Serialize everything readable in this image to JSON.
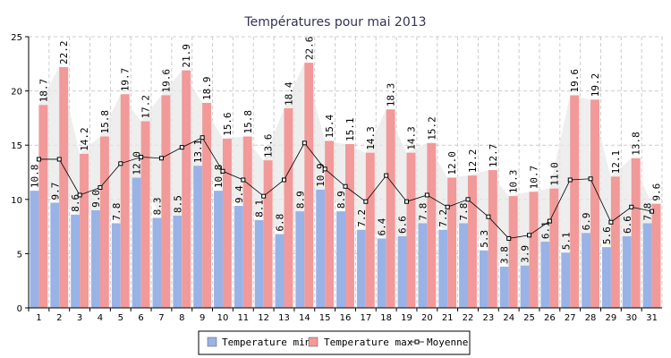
{
  "chart_data": {
    "type": "bar",
    "title": "Températures pour mai 2013",
    "categories": [
      "1",
      "2",
      "3",
      "4",
      "5",
      "6",
      "7",
      "8",
      "9",
      "10",
      "11",
      "12",
      "13",
      "14",
      "15",
      "16",
      "17",
      "18",
      "19",
      "20",
      "21",
      "22",
      "23",
      "24",
      "25",
      "26",
      "27",
      "28",
      "29",
      "30",
      "31"
    ],
    "series": [
      {
        "name": "Temperature min",
        "kind": "bar",
        "color": "#99b3e6",
        "values": [
          10.8,
          9.7,
          8.6,
          9.0,
          7.8,
          12.0,
          8.3,
          8.5,
          13.1,
          10.8,
          9.4,
          8.1,
          6.8,
          8.9,
          10.9,
          8.9,
          7.2,
          6.4,
          6.6,
          7.8,
          7.2,
          7.8,
          5.3,
          3.8,
          3.9,
          6.1,
          5.1,
          6.9,
          5.6,
          6.6,
          7.8
        ],
        "labels": [
          "10.8",
          "9.7",
          "8.6",
          "9.0",
          "7.8",
          "12.0",
          "8.3",
          "8.5",
          "13.1",
          "10.8",
          "9.4",
          "8.1",
          "6.8",
          "8.9",
          "10.9",
          "8.9",
          "7.2",
          "6.4",
          "6.6",
          "7.8",
          "7.2",
          "7.8",
          "5.3",
          "3.8",
          "3.9",
          "6.1",
          "5.1",
          "6.9",
          "5.6",
          "6.6",
          "7.8"
        ]
      },
      {
        "name": "Temperature max",
        "kind": "bar",
        "color": "#f29999",
        "values": [
          18.7,
          22.2,
          14.2,
          15.8,
          19.7,
          17.2,
          19.6,
          21.9,
          18.9,
          15.6,
          15.8,
          13.6,
          18.4,
          22.6,
          15.4,
          15.1,
          14.3,
          18.3,
          14.3,
          15.2,
          12.0,
          12.2,
          12.7,
          10.3,
          10.7,
          11.0,
          19.6,
          19.2,
          12.1,
          13.8,
          9.6
        ],
        "labels": [
          "18.7",
          "22.2",
          "14.2",
          "15.8",
          "19.7",
          "17.2",
          "19.6",
          "21.9",
          "18.9",
          "15.6",
          "15.8",
          "13.6",
          "18.4",
          "22.6",
          "15.4",
          "15.1",
          "14.3",
          "18.3",
          "14.3",
          "15.2",
          "12.0",
          "12.2",
          "12.7",
          "10.3",
          "10.7",
          "11.0",
          "19.6",
          "19.2",
          "12.1",
          "13.8",
          "9.6"
        ]
      },
      {
        "name": "Moyenne",
        "kind": "line",
        "color": "#000000",
        "values": [
          13.7,
          13.7,
          10.4,
          11.1,
          13.3,
          13.9,
          13.8,
          14.8,
          15.7,
          12.6,
          11.8,
          10.3,
          11.8,
          15.2,
          12.8,
          11.2,
          9.8,
          12.2,
          9.8,
          10.4,
          9.3,
          10.0,
          8.4,
          6.4,
          6.7,
          8.0,
          11.8,
          11.9,
          7.9,
          9.3,
          8.9
        ]
      }
    ],
    "ylim": [
      0,
      25
    ],
    "yticks": [
      0,
      5,
      10,
      15,
      20,
      25
    ],
    "grid": true,
    "legend": "bottom-center"
  },
  "colors": {
    "min_bar": "#99b3e6",
    "max_bar": "#f29999",
    "band_fill": "#e8e8e8",
    "grid": "#cccccc",
    "title": "#333355"
  }
}
